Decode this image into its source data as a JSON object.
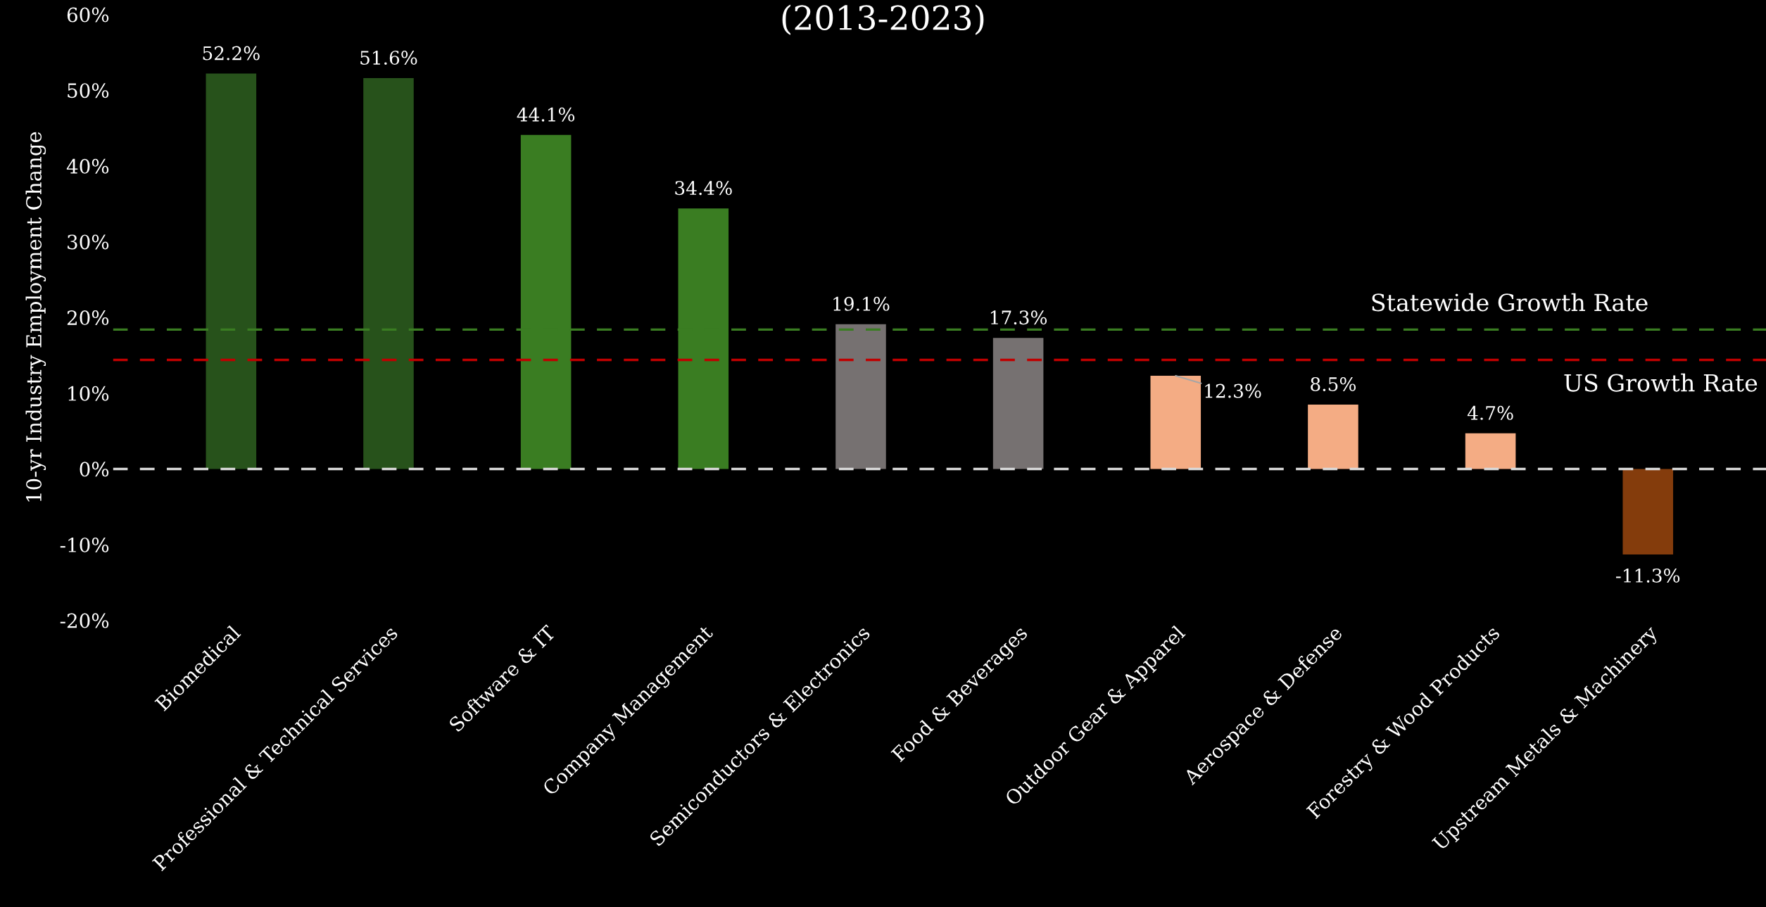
{
  "chart_data": {
    "type": "bar",
    "title": "(2013-2023)",
    "ylabel": "10-yr Industry Employment Change",
    "categories": [
      "Biomedical",
      "Professional & Technical Services",
      "Software & IT",
      "Company Management",
      "Semiconductors & Electronics",
      "Food & Beverages",
      "Outdoor Gear & Apparel",
      "Aerospace & Defense",
      "Forestry & Wood Products",
      "Upstream Metals & Machinery"
    ],
    "values": [
      52.2,
      51.6,
      44.1,
      34.4,
      19.1,
      17.3,
      12.3,
      8.5,
      4.7,
      -11.3
    ],
    "value_labels": [
      "52.2%",
      "51.6%",
      "44.1%",
      "34.4%",
      "19.1%",
      "17.3%",
      "12.3%",
      "8.5%",
      "4.7%",
      "-11.3%"
    ],
    "colors": [
      "#27521b",
      "#27521b",
      "#3a7d22",
      "#3a7d22",
      "#767171",
      "#767171",
      "#f4ac84",
      "#f4ac84",
      "#f4ac84",
      "#843c0c"
    ],
    "ylim": [
      -20,
      60
    ],
    "yticks": [
      {
        "value": -20,
        "label": "-20%"
      },
      {
        "value": -10,
        "label": "-10%"
      },
      {
        "value": 0,
        "label": "0%"
      },
      {
        "value": 10,
        "label": "10%"
      },
      {
        "value": 20,
        "label": "20%"
      },
      {
        "value": 30,
        "label": "30%"
      },
      {
        "value": 40,
        "label": "40%"
      },
      {
        "value": 50,
        "label": "50%"
      },
      {
        "value": 60,
        "label": "60%"
      }
    ],
    "ref_lines": [
      {
        "axis": "y",
        "value": 18.4,
        "label": "Statewide Growth Rate",
        "color": "#3a7d22",
        "line_style": "dashed"
      },
      {
        "axis": "y",
        "value": 14.4,
        "label": "US Growth Rate",
        "color": "#c00000",
        "line_style": "dashed"
      },
      {
        "axis": "y",
        "value": 0,
        "label": null,
        "color": "#d9d9d9",
        "line_style": "dashed"
      }
    ],
    "grid": false
  }
}
